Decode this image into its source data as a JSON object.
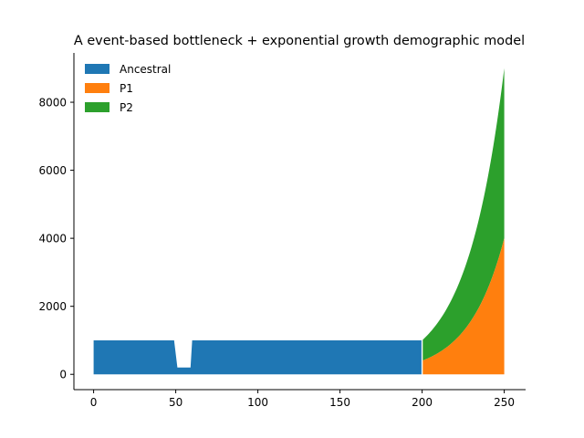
{
  "chart_data": {
    "type": "area",
    "title": "A event-based bottleneck + exponential growth demographic model",
    "xlabel": "",
    "ylabel": "",
    "xlim": [
      -12,
      263
    ],
    "ylim": [
      -450,
      9450
    ],
    "x_ticks": [
      0,
      50,
      100,
      150,
      200,
      250
    ],
    "y_ticks": [
      0,
      2000,
      4000,
      6000,
      8000
    ],
    "grid": false,
    "legend_position": "top-left",
    "series": [
      {
        "name": "Ancestral",
        "color": "#1f77b4",
        "x": [
          0,
          49,
          51,
          59,
          60,
          200
        ],
        "y": [
          1000,
          1000,
          200,
          200,
          1000,
          1000
        ]
      },
      {
        "name": "P1",
        "color": "#ff7f0e",
        "x_start": 200,
        "x_end": 250,
        "y_start": 400,
        "y_end": 4000
      },
      {
        "name": "P2",
        "color": "#2ca02c",
        "x_start": 200,
        "x_end": 250,
        "y_start": 600,
        "y_end": 5000
      }
    ]
  }
}
